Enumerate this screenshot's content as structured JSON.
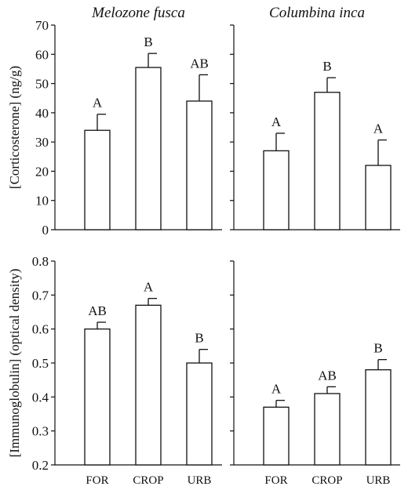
{
  "colors": {
    "bar_fill": "#ffffff",
    "stroke": "#111111",
    "background": "#ffffff"
  },
  "chart_data": [
    {
      "type": "bar",
      "panel": "top-left",
      "title": "Melozone fusca",
      "ylabel": "[Corticosterone] (ng/g)",
      "ylim": [
        0,
        70
      ],
      "yticks": [
        0,
        10,
        20,
        30,
        40,
        50,
        60,
        70
      ],
      "ytick_labels": [
        "0",
        "10",
        "20",
        "30",
        "40",
        "50",
        "60",
        "70"
      ],
      "categories": [
        "FOR",
        "CROP",
        "URB"
      ],
      "show_category_labels": false,
      "values": [
        34,
        55.5,
        44
      ],
      "errors": [
        5.5,
        4.8,
        9
      ],
      "annotations": [
        "A",
        "B",
        "AB"
      ]
    },
    {
      "type": "bar",
      "panel": "top-right",
      "title": "Columbina inca",
      "ylabel": "",
      "ylim": [
        0,
        70
      ],
      "yticks": [
        0,
        10,
        20,
        30,
        40,
        50,
        60,
        70
      ],
      "ytick_labels": [],
      "categories": [
        "FOR",
        "CROP",
        "URB"
      ],
      "show_category_labels": false,
      "values": [
        27,
        47,
        22
      ],
      "errors": [
        6,
        5,
        8.7
      ],
      "annotations": [
        "A",
        "B",
        "A"
      ]
    },
    {
      "type": "bar",
      "panel": "bottom-left",
      "title": "",
      "ylabel": "[Immunoglobulin] (optical density)",
      "ylim": [
        0.2,
        0.8
      ],
      "yticks": [
        0.2,
        0.3,
        0.4,
        0.5,
        0.6,
        0.7,
        0.8
      ],
      "ytick_labels": [
        "0.2",
        "0.3",
        "0.4",
        "0.5",
        "0.6",
        "0.7",
        "0.8"
      ],
      "categories": [
        "FOR",
        "CROP",
        "URB"
      ],
      "show_category_labels": true,
      "values": [
        0.6,
        0.67,
        0.5
      ],
      "errors": [
        0.02,
        0.02,
        0.04
      ],
      "annotations": [
        "AB",
        "A",
        "B"
      ]
    },
    {
      "type": "bar",
      "panel": "bottom-right",
      "title": "",
      "ylabel": "",
      "ylim": [
        0.2,
        0.8
      ],
      "yticks": [
        0.2,
        0.3,
        0.4,
        0.5,
        0.6,
        0.7,
        0.8
      ],
      "ytick_labels": [],
      "categories": [
        "FOR",
        "CROP",
        "URB"
      ],
      "show_category_labels": true,
      "values": [
        0.37,
        0.41,
        0.48
      ],
      "errors": [
        0.02,
        0.02,
        0.03
      ],
      "annotations": [
        "A",
        "AB",
        "B"
      ]
    }
  ]
}
